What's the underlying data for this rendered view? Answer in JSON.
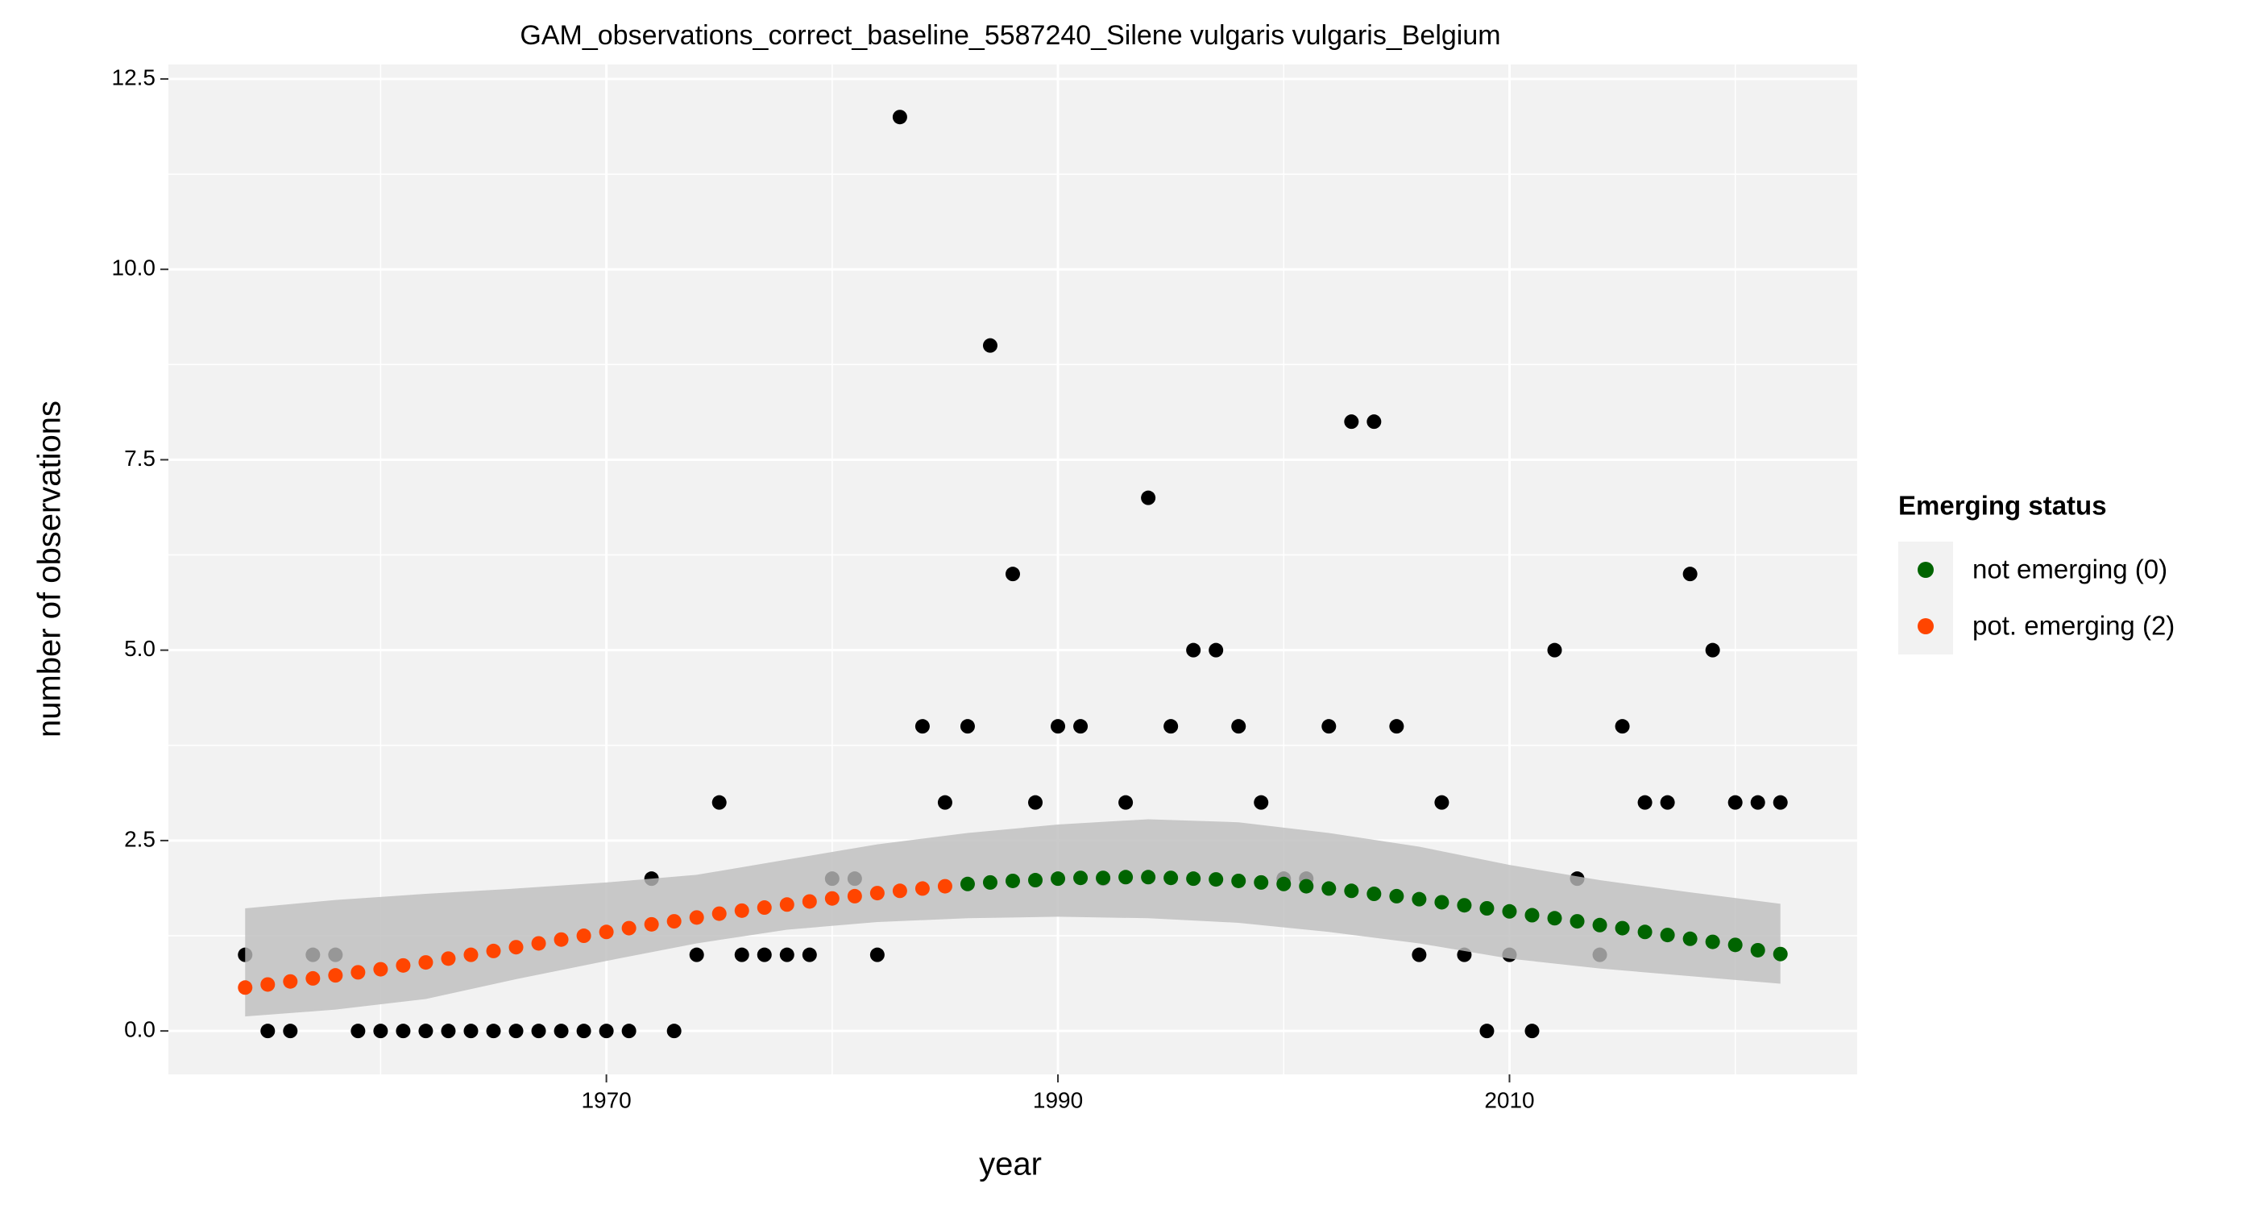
{
  "chart_data": {
    "type": "scatter",
    "title": "GAM_observations_correct_baseline_5587240_Silene vulgaris vulgaris_Belgium",
    "xlabel": "year",
    "ylabel": "number of observations",
    "x": [
      1954,
      1955,
      1956,
      1957,
      1958,
      1959,
      1960,
      1961,
      1962,
      1963,
      1964,
      1965,
      1966,
      1967,
      1968,
      1969,
      1970,
      1971,
      1972,
      1973,
      1974,
      1975,
      1976,
      1977,
      1978,
      1979,
      1980,
      1981,
      1982,
      1983,
      1984,
      1985,
      1986,
      1987,
      1988,
      1989,
      1990,
      1991,
      1992,
      1993,
      1994,
      1995,
      1996,
      1997,
      1998,
      1999,
      2000,
      2001,
      2002,
      2003,
      2004,
      2005,
      2006,
      2007,
      2008,
      2009,
      2010,
      2011,
      2012,
      2013,
      2014,
      2015,
      2016,
      2017,
      2018,
      2019,
      2020,
      2021,
      2022
    ],
    "observations": {
      "color": "#000000",
      "values": [
        1,
        0,
        0,
        1,
        1,
        0,
        0,
        0,
        0,
        0,
        0,
        0,
        0,
        0,
        0,
        0,
        0,
        0,
        2,
        0,
        1,
        3,
        1,
        1,
        1,
        1,
        2,
        2,
        1,
        12,
        4,
        3,
        4,
        9,
        6,
        3,
        4,
        4,
        2,
        3,
        7,
        4,
        5,
        5,
        4,
        3,
        2,
        2,
        4,
        8,
        8,
        4,
        1,
        3,
        1,
        0,
        1,
        0,
        5,
        2,
        1,
        4,
        3,
        3,
        6,
        5,
        3,
        3,
        3
      ]
    },
    "band": {
      "color": "#bdbdbd",
      "x": [
        1954,
        1958,
        1962,
        1966,
        1970,
        1974,
        1978,
        1982,
        1986,
        1990,
        1994,
        1998,
        2002,
        2006,
        2010,
        2014,
        2018,
        2022
      ],
      "lower": [
        0.19,
        0.28,
        0.42,
        0.68,
        0.92,
        1.15,
        1.33,
        1.43,
        1.48,
        1.5,
        1.48,
        1.42,
        1.3,
        1.15,
        0.95,
        0.82,
        0.72,
        0.62
      ],
      "upper": [
        1.61,
        1.72,
        1.8,
        1.87,
        1.95,
        2.05,
        2.25,
        2.45,
        2.6,
        2.71,
        2.78,
        2.74,
        2.6,
        2.42,
        2.18,
        1.98,
        1.82,
        1.67
      ]
    },
    "series": [
      {
        "name": "not emerging (0)",
        "color": "#006400",
        "values": [
          null,
          null,
          null,
          null,
          null,
          null,
          null,
          null,
          null,
          null,
          null,
          null,
          null,
          null,
          null,
          null,
          null,
          null,
          null,
          null,
          null,
          null,
          null,
          null,
          null,
          null,
          null,
          null,
          null,
          null,
          null,
          null,
          1.93,
          1.95,
          1.97,
          1.98,
          2.0,
          2.01,
          2.01,
          2.02,
          2.02,
          2.01,
          2.0,
          1.99,
          1.97,
          1.95,
          1.93,
          1.9,
          1.87,
          1.84,
          1.8,
          1.77,
          1.73,
          1.69,
          1.65,
          1.61,
          1.57,
          1.52,
          1.48,
          1.44,
          1.39,
          1.35,
          1.3,
          1.26,
          1.21,
          1.17,
          1.13,
          1.06,
          1.01
        ]
      },
      {
        "name": "pot. emerging (2)",
        "color": "#ff4500",
        "values": [
          0.57,
          0.61,
          0.65,
          0.69,
          0.73,
          0.77,
          0.81,
          0.86,
          0.9,
          0.95,
          1.0,
          1.05,
          1.1,
          1.15,
          1.2,
          1.25,
          1.3,
          1.35,
          1.4,
          1.44,
          1.49,
          1.54,
          1.58,
          1.62,
          1.66,
          1.7,
          1.74,
          1.77,
          1.81,
          1.84,
          1.87,
          1.9,
          null,
          null,
          null,
          null,
          null,
          null,
          null,
          null,
          null,
          null,
          null,
          null,
          null,
          null,
          null,
          null,
          null,
          null,
          null,
          null,
          null,
          null,
          null,
          null,
          null,
          null,
          null,
          null,
          null,
          null,
          null,
          null,
          null,
          null,
          null,
          null,
          null
        ]
      }
    ],
    "legend": {
      "title": "Emerging status",
      "position": "right"
    },
    "xlim": [
      1950.6,
      2025.4
    ],
    "ylim": [
      -0.57,
      12.69
    ],
    "xticks": [
      1970,
      1990,
      2010
    ],
    "yticks": [
      {
        "value": 0,
        "label": "0.0"
      },
      {
        "value": 2.5,
        "label": "2.5"
      },
      {
        "value": 5,
        "label": "5.0"
      },
      {
        "value": 7.5,
        "label": "7.5"
      },
      {
        "value": 10,
        "label": "10.0"
      },
      {
        "value": 12.5,
        "label": "12.5"
      }
    ],
    "grid": true,
    "background": "#f2f2f2"
  }
}
